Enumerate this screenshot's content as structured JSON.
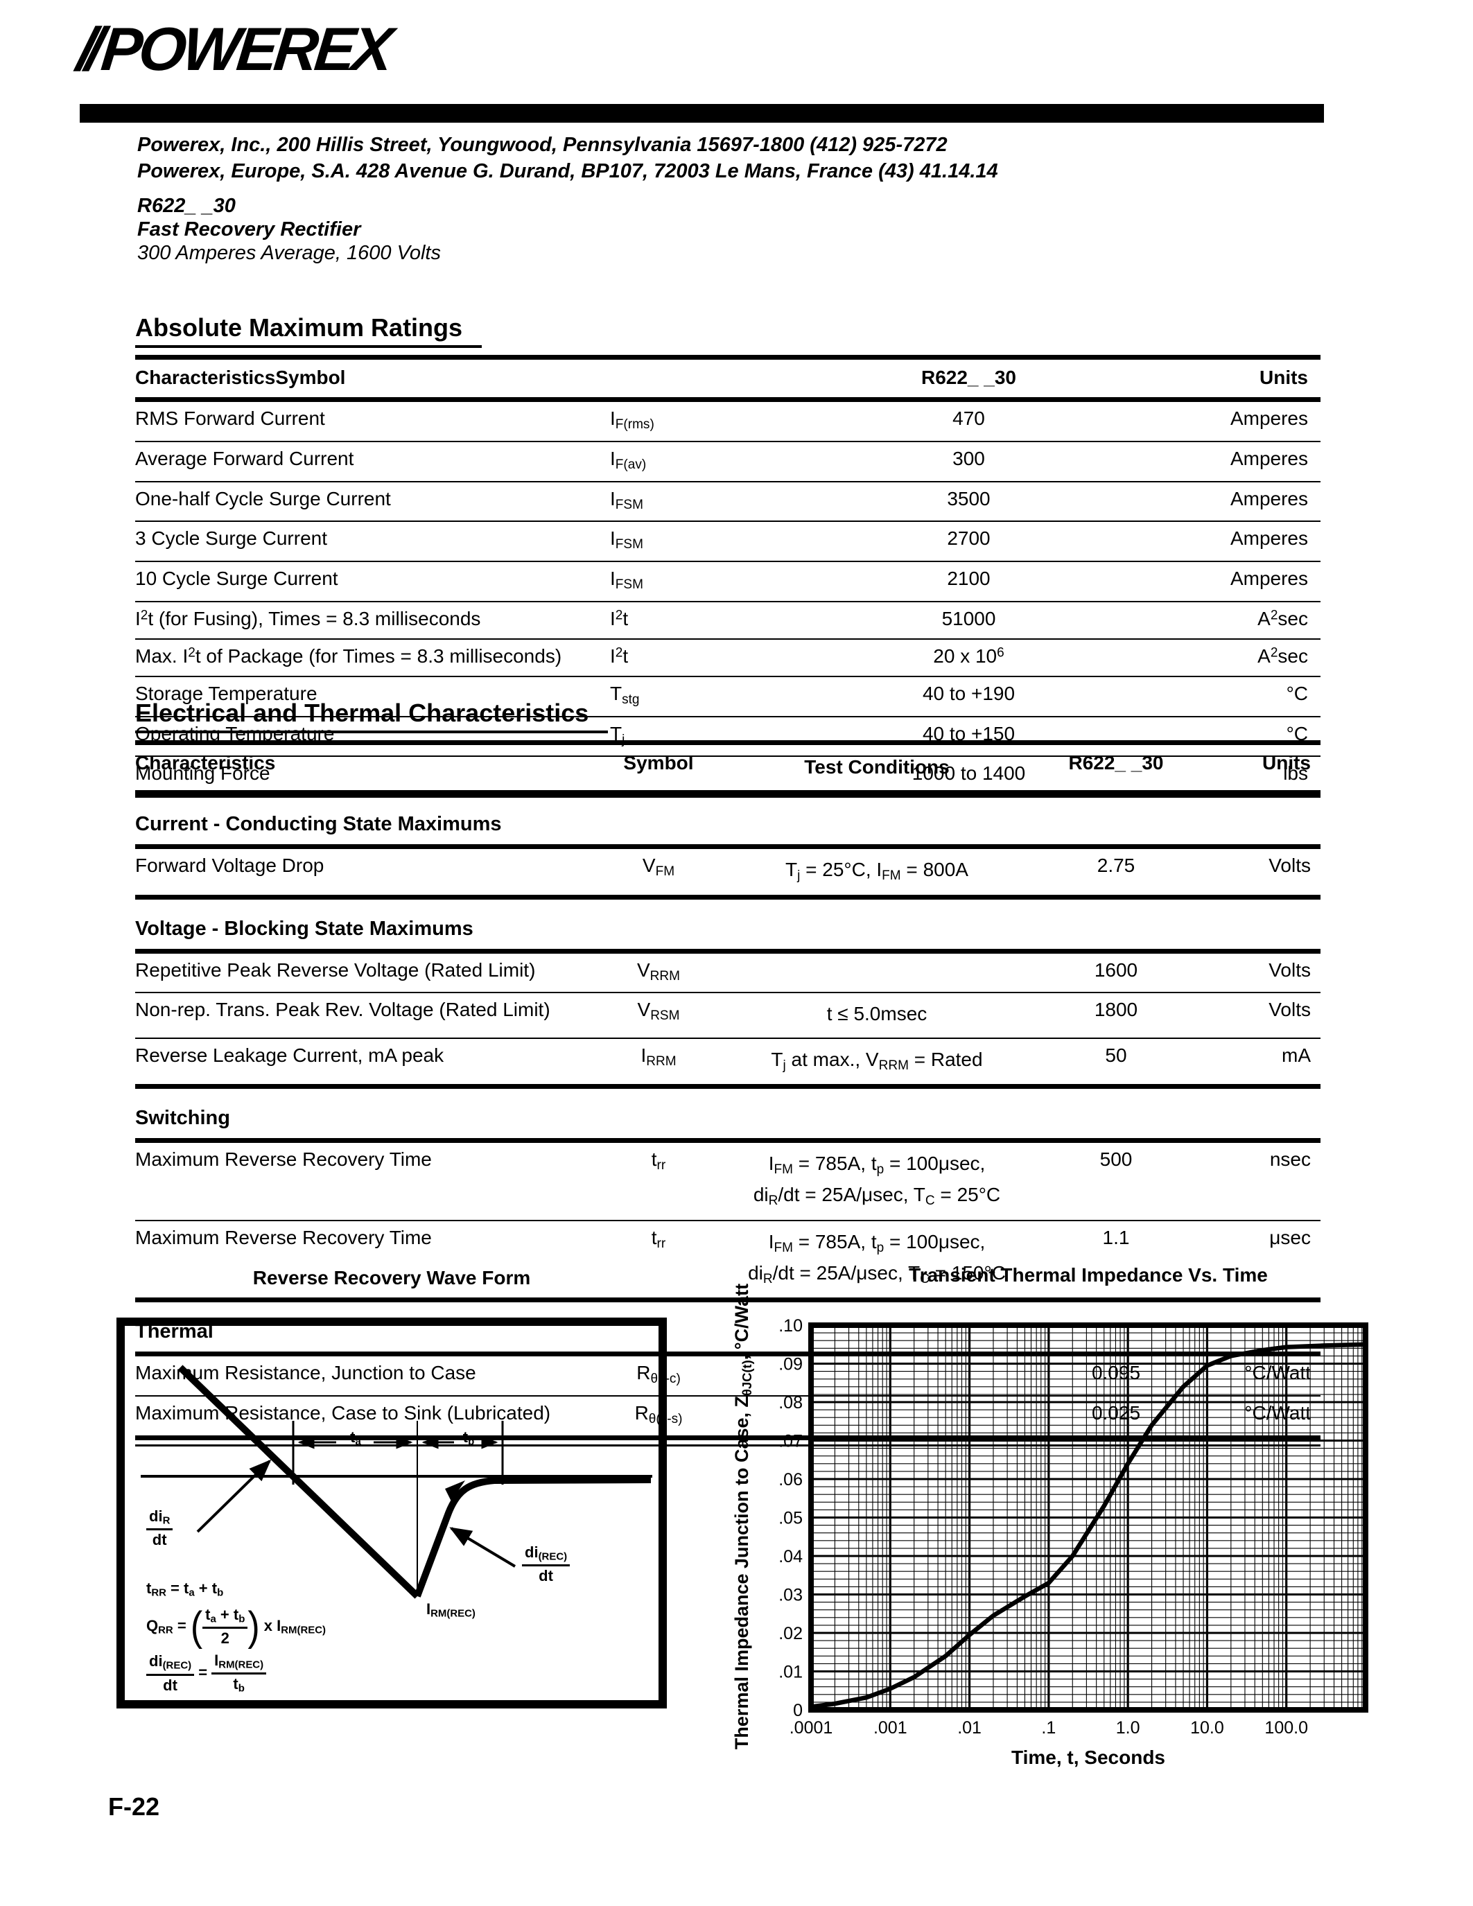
{
  "header": {
    "logo_slashes": "//",
    "logo_text": "POWEREX",
    "address_line1": "Powerex, Inc., 200 Hillis Street, Youngwood, Pennsylvania 15697-1800 (412) 925-7272",
    "address_line2": "Powerex, Europe, S.A. 428 Avenue G. Durand, BP107, 72003 Le Mans, France (43) 41.14.14",
    "part_number": "R622_ _30",
    "part_title": "Fast Recovery Rectifier",
    "part_subtitle": "300 Amperes Average, 1600 Volts"
  },
  "abs_max": {
    "title": "Absolute Maximum Ratings",
    "headers": {
      "characteristics": "CharacteristicsSymbol",
      "part": "R622_ _30",
      "units": "Units"
    },
    "rows": [
      {
        "characteristic_html": "RMS Forward Current",
        "symbol_html": "I<sub>F(rms)</sub>",
        "value_html": "470",
        "units_html": "Amperes"
      },
      {
        "characteristic_html": "Average Forward Current",
        "symbol_html": "I<sub>F(av)</sub>",
        "value_html": "300",
        "units_html": "Amperes"
      },
      {
        "characteristic_html": "One-half Cycle Surge Current",
        "symbol_html": "I<sub>FSM</sub>",
        "value_html": "3500",
        "units_html": "Amperes"
      },
      {
        "characteristic_html": "3 Cycle Surge Current",
        "symbol_html": "I<sub>FSM</sub>",
        "value_html": "2700",
        "units_html": "Amperes"
      },
      {
        "characteristic_html": "10 Cycle Surge Current",
        "symbol_html": "I<sub>FSM</sub>",
        "value_html": "2100",
        "units_html": "Amperes"
      },
      {
        "characteristic_html": "I<sup>2</sup>t (for Fusing), Times = 8.3 milliseconds",
        "symbol_html": "I<sup>2</sup>t",
        "value_html": "51000",
        "units_html": "A<sup>2</sup>sec"
      },
      {
        "characteristic_html": "Max. I<sup>2</sup>t of Package (for Times = 8.3 milliseconds)",
        "symbol_html": "I<sup>2</sup>t",
        "value_html": "20 x 10<sup>6</sup>",
        "units_html": "A<sup>2</sup>sec"
      },
      {
        "characteristic_html": "Storage Temperature",
        "symbol_html": "T<sub>stg</sub>",
        "value_html": "40 to +190",
        "units_html": "°C"
      },
      {
        "characteristic_html": "Operating Temperature",
        "symbol_html": "T<sub>j</sub>",
        "value_html": "40 to +150",
        "units_html": "°C"
      },
      {
        "characteristic_html": "Mounting Force",
        "symbol_html": "",
        "value_html": "1000 to 1400",
        "units_html": "lbs"
      }
    ]
  },
  "elec": {
    "title": "Electrical and Thermal Characteristics",
    "headers": {
      "characteristics": "Characteristics",
      "symbol": "Symbol",
      "conditions": "Test Conditions",
      "part": "R622_ _30",
      "units": "Units"
    },
    "sections": [
      {
        "name": "Current - Conducting State Maximums",
        "rows": [
          {
            "characteristic_html": "Forward Voltage Drop",
            "symbol_html": "V<sub>FM</sub>",
            "conditions_html": "T<sub>j</sub> = 25°C, I<sub>FM</sub> = 800A",
            "value_html": "2.75",
            "units_html": "Volts"
          }
        ]
      },
      {
        "name": "Voltage - Blocking State Maximums",
        "rows": [
          {
            "characteristic_html": "Repetitive Peak Reverse Voltage (Rated Limit)",
            "symbol_html": "V<sub>RRM</sub>",
            "conditions_html": "",
            "value_html": "1600",
            "units_html": "Volts"
          },
          {
            "characteristic_html": "Non-rep. Trans. Peak Rev. Voltage (Rated Limit)",
            "symbol_html": "V<sub>RSM</sub>",
            "conditions_html": "t ≤ 5.0msec",
            "value_html": "1800",
            "units_html": "Volts"
          },
          {
            "characteristic_html": "Reverse Leakage Current, mA peak",
            "symbol_html": "I<sub>RRM</sub>",
            "conditions_html": "T<sub>j</sub> at max., V<sub>RRM</sub> = Rated",
            "value_html": "50",
            "units_html": "mA"
          }
        ]
      },
      {
        "name": "Switching",
        "rows": [
          {
            "characteristic_html": "Maximum Reverse Recovery Time",
            "symbol_html": "t<sub>rr</sub>",
            "conditions_html": "I<sub>FM</sub> = 785A, t<sub>p</sub> = 100μsec,<br>di<sub>R</sub>/dt = 25A/μsec, T<sub>C</sub> = 25°C",
            "value_html": "500",
            "units_html": "nsec"
          },
          {
            "characteristic_html": "Maximum Reverse Recovery Time",
            "symbol_html": "t<sub>rr</sub>",
            "conditions_html": "I<sub>FM</sub> = 785A, t<sub>p</sub> = 100μsec,<br>di<sub>R</sub>/dt = 25A/μsec, T<sub>C</sub> = 150°C",
            "value_html": "1.1",
            "units_html": "μsec"
          }
        ]
      },
      {
        "name": "Thermal",
        "rows": [
          {
            "characteristic_html": "Maximum Resistance, Junction to Case",
            "symbol_html": "R<sub>θ(j-c)</sub>",
            "conditions_html": "",
            "value_html": "0.095",
            "units_html": "°C/Watt"
          },
          {
            "characteristic_html": "Maximum Resistance, Case to Sink (Lubricated)",
            "symbol_html": "R<sub>θ(c-s)</sub>",
            "conditions_html": "",
            "value_html": "0.025",
            "units_html": "°C/Watt"
          }
        ]
      }
    ]
  },
  "waveform": {
    "title": "Reverse Recovery Wave Form",
    "labels": {
      "ta_html": "t<sub>a</sub>",
      "tb_html": "t<sub>b</sub>",
      "dir_num_html": "di<sub>R</sub>",
      "dir_den_html": "dt",
      "direc_num_html": "di<sub>(REC)</sub>",
      "direc_den_html": "dt",
      "irm_html": "I<sub>RM(REC)</sub>",
      "f1_html": "t<sub>RR</sub> = t<sub>a</sub> + t<sub>b</sub>",
      "f2_html": "Q<sub>RR</sub> = <span class=\"bigp\">(</span><span class=\"frac\"><span class=\"num\">t<sub>a</sub> + t<sub>b</sub></span><span class=\"den\">2</span></span><span class=\"bigp\">)</span> x I<sub>RM(REC)</sub>",
      "f3_html": "<span class=\"frac\"><span class=\"num\">di<sub>(REC)</sub></span><span class=\"den\">dt</span></span> = <span class=\"frac\"><span class=\"num\">I<sub>RM(REC)</sub></span><span class=\"den\">t<sub>b</sub></span></span>"
    }
  },
  "chart_data": {
    "type": "line",
    "title": "Transient Thermal Impedance Vs. Time",
    "xlabel": "Time, t, Seconds",
    "ylabel": "Thermal Impedance Junction to Case, ZθJC(t), °C/Watt",
    "ylabel_html": "Thermal Impedance Junction to Case, Z<sub>θJC(t)</sub>, °C/Watt",
    "x_scale": "log",
    "grid": true,
    "legend": "none",
    "xlim": [
      0.0001,
      1000
    ],
    "ylim": [
      0,
      0.1
    ],
    "xticks": {
      "values": [
        0.0001,
        0.001,
        0.01,
        0.1,
        1,
        10,
        100
      ],
      "labels": [
        ".0001",
        ".001",
        ".01",
        ".1",
        "1.0",
        "10.0",
        "100.0"
      ]
    },
    "yticks": {
      "values": [
        0.1,
        0.09,
        0.08,
        0.07,
        0.06,
        0.05,
        0.04,
        0.03,
        0.02,
        0.01,
        0
      ],
      "labels": [
        ".10",
        ".09",
        ".08",
        ".07",
        ".06",
        ".05",
        ".04",
        ".03",
        ".02",
        ".01",
        "0"
      ]
    },
    "series": [
      {
        "name": "ZθJC(t)",
        "points": [
          [
            0.0001,
            0.0008
          ],
          [
            0.0002,
            0.0016
          ],
          [
            0.0005,
            0.0032
          ],
          [
            0.001,
            0.0055
          ],
          [
            0.002,
            0.0085
          ],
          [
            0.005,
            0.014
          ],
          [
            0.01,
            0.0195
          ],
          [
            0.02,
            0.0245
          ],
          [
            0.05,
            0.0295
          ],
          [
            0.1,
            0.033
          ],
          [
            0.2,
            0.04
          ],
          [
            0.5,
            0.053
          ],
          [
            1,
            0.064
          ],
          [
            2,
            0.074
          ],
          [
            5,
            0.084
          ],
          [
            10,
            0.0895
          ],
          [
            20,
            0.092
          ],
          [
            50,
            0.0935
          ],
          [
            100,
            0.0943
          ],
          [
            300,
            0.0947
          ],
          [
            1000,
            0.095
          ]
        ]
      }
    ]
  },
  "footer": {
    "page_number": "F-22"
  }
}
